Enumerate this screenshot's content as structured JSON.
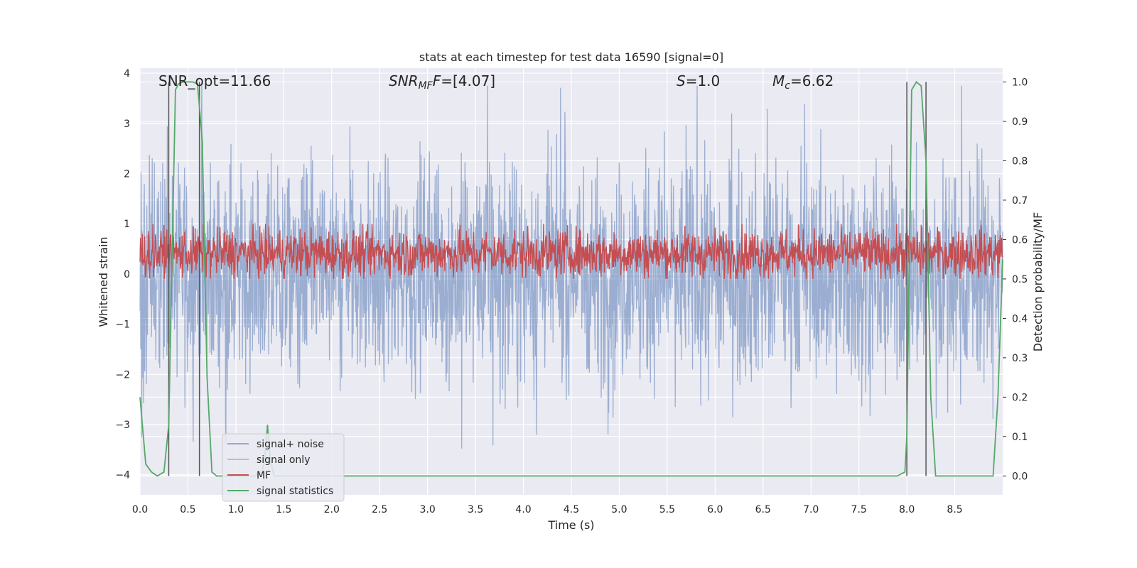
{
  "chart_data": {
    "type": "line",
    "title": "stats at each timestep for test data 16590 [signal=0]",
    "xlabel": "Time (s)",
    "ylabel_left": "Whitened strain",
    "ylabel_right": "Detection probability/MF",
    "xlim": [
      0.0,
      9.0
    ],
    "ylim_left": [
      -4.4,
      4.1
    ],
    "ylim_right": [
      -0.048,
      1.035
    ],
    "x_ticks": [
      "0.0",
      "0.5",
      "1.0",
      "1.5",
      "2.0",
      "2.5",
      "3.0",
      "3.5",
      "4.0",
      "4.5",
      "5.0",
      "5.5",
      "6.0",
      "6.5",
      "7.0",
      "7.5",
      "8.0",
      "8.5"
    ],
    "y_ticks_left": [
      "4",
      "3",
      "2",
      "1",
      "0",
      "−1",
      "−2",
      "−3",
      "−4"
    ],
    "y_ticks_right": [
      "1.0",
      "0.9",
      "0.8",
      "0.7",
      "0.6",
      "0.5",
      "0.4",
      "0.3",
      "0.2",
      "0.1",
      "0.0"
    ],
    "grid": true,
    "legend_position": "lower-left",
    "annotations": {
      "snr_opt": "SNR_opt=11.66",
      "snr_mf_main": "SNR",
      "snr_mf_sub": "MF",
      "snr_mf_value": "=[4.07]",
      "s_main": "S",
      "s_value": "=1.0",
      "mc_main": "M",
      "mc_sub": "c",
      "mc_value": "=6.62"
    },
    "series": [
      {
        "name": "signal+ noise",
        "color": "#4c72b0",
        "description_level": "noise band approx ±2 (peaks to ±3.7)"
      },
      {
        "name": "signal only",
        "color": "#dd8452",
        "values": []
      },
      {
        "name": "MF",
        "color": "#c44e52",
        "axis": "right",
        "range": [
          0.51,
          0.62
        ]
      },
      {
        "name": "signal statistics",
        "color": "#55a868",
        "axis": "right",
        "x": [
          0.0,
          0.06,
          0.12,
          0.18,
          0.25,
          0.3,
          0.33,
          0.37,
          0.4,
          0.45,
          0.5,
          0.55,
          0.6,
          0.65,
          0.7,
          0.75,
          0.8,
          0.9,
          1.0,
          1.1,
          1.2,
          1.27,
          1.3,
          1.33,
          1.36,
          1.4,
          1.5,
          2.0,
          3.0,
          4.0,
          5.0,
          6.0,
          7.0,
          7.5,
          7.9,
          7.98,
          8.0,
          8.05,
          8.1,
          8.15,
          8.2,
          8.25,
          8.3,
          8.35,
          8.5,
          8.7,
          8.9,
          8.95,
          9.0
        ],
        "values": [
          0.2,
          0.03,
          0.01,
          0.0,
          0.01,
          0.13,
          0.5,
          0.98,
          0.995,
          1.0,
          1.0,
          1.0,
          0.995,
          0.85,
          0.25,
          0.01,
          0.0,
          0.0,
          0.0,
          0.0,
          0.0,
          0.01,
          0.04,
          0.13,
          0.04,
          0.0,
          0.0,
          0.0,
          0.0,
          0.0,
          0.0,
          0.0,
          0.0,
          0.0,
          0.0,
          0.01,
          0.1,
          0.98,
          1.0,
          0.99,
          0.8,
          0.2,
          0.0,
          0.0,
          0.0,
          0.0,
          0.0,
          0.2,
          0.55
        ]
      }
    ],
    "vertical_markers_x": [
      0.3,
      0.62,
      8.0,
      8.2
    ]
  },
  "legend": {
    "items": [
      "signal+ noise",
      "signal only",
      "MF",
      "signal statistics"
    ]
  }
}
